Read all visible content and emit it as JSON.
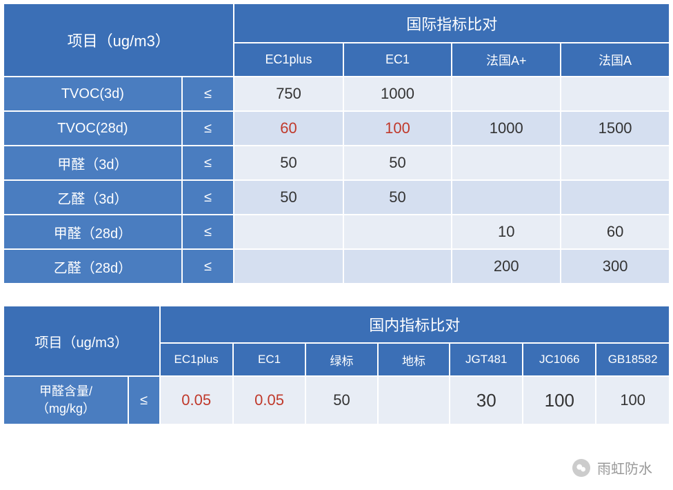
{
  "table1": {
    "corner": "项目（ug/m3）",
    "groupHeader": "国际指标比对",
    "columns": [
      "EC1plus",
      "EC1",
      "法国A+",
      "法国A"
    ],
    "op": "≤",
    "rows": [
      {
        "label": "TVOC(3d)",
        "cells": [
          "750",
          "1000",
          "",
          ""
        ],
        "hl": [
          false,
          false,
          false,
          false
        ],
        "shade": "light"
      },
      {
        "label": "TVOC(28d)",
        "cells": [
          "60",
          "100",
          "1000",
          "1500"
        ],
        "hl": [
          true,
          true,
          false,
          false
        ],
        "shade": "dark"
      },
      {
        "label": "甲醛（3d）",
        "cells": [
          "50",
          "50",
          "",
          ""
        ],
        "hl": [
          false,
          false,
          false,
          false
        ],
        "shade": "light"
      },
      {
        "label": "乙醛（3d）",
        "cells": [
          "50",
          "50",
          "",
          ""
        ],
        "hl": [
          false,
          false,
          false,
          false
        ],
        "shade": "dark"
      },
      {
        "label": "甲醛（28d）",
        "cells": [
          "",
          "",
          "10",
          "60"
        ],
        "hl": [
          false,
          false,
          false,
          false
        ],
        "shade": "light"
      },
      {
        "label": "乙醛（28d）",
        "cells": [
          "",
          "",
          "200",
          "300"
        ],
        "hl": [
          false,
          false,
          false,
          false
        ],
        "shade": "dark"
      }
    ]
  },
  "table2": {
    "corner": "项目（ug/m3）",
    "groupHeader": "国内指标比对",
    "columns": [
      "EC1plus",
      "EC1",
      "绿标",
      "地标",
      "JGT481",
      "JC1066",
      "GB18582"
    ],
    "op": "≤",
    "rows": [
      {
        "label": "甲醛含量/（mg/kg）",
        "cells": [
          "0.05",
          "0.05",
          "50",
          "",
          "30",
          "100",
          "100"
        ],
        "hl": [
          true,
          true,
          false,
          false,
          false,
          false,
          false
        ],
        "sizes": [
          22,
          22,
          22,
          22,
          26,
          26,
          22
        ],
        "shade": "light"
      }
    ]
  },
  "footer": "雨虹防水",
  "layout": {
    "t1_col_widths": [
      260,
      75,
      158,
      158,
      158,
      158
    ],
    "t2_col_widths": [
      185,
      45,
      106,
      106,
      106,
      106,
      106,
      106,
      106
    ]
  },
  "colors": {
    "header_main_bg": "#3b6fb6",
    "header_sub_bg": "#3b6fb6",
    "row_label_bg": "#4a7dc0",
    "cell_light_bg": "#e8edf5",
    "cell_dark_bg": "#d5dff0",
    "text_normal": "#333333",
    "text_highlight": "#c0392b",
    "text_white": "#ffffff",
    "footer_text": "#999999"
  }
}
